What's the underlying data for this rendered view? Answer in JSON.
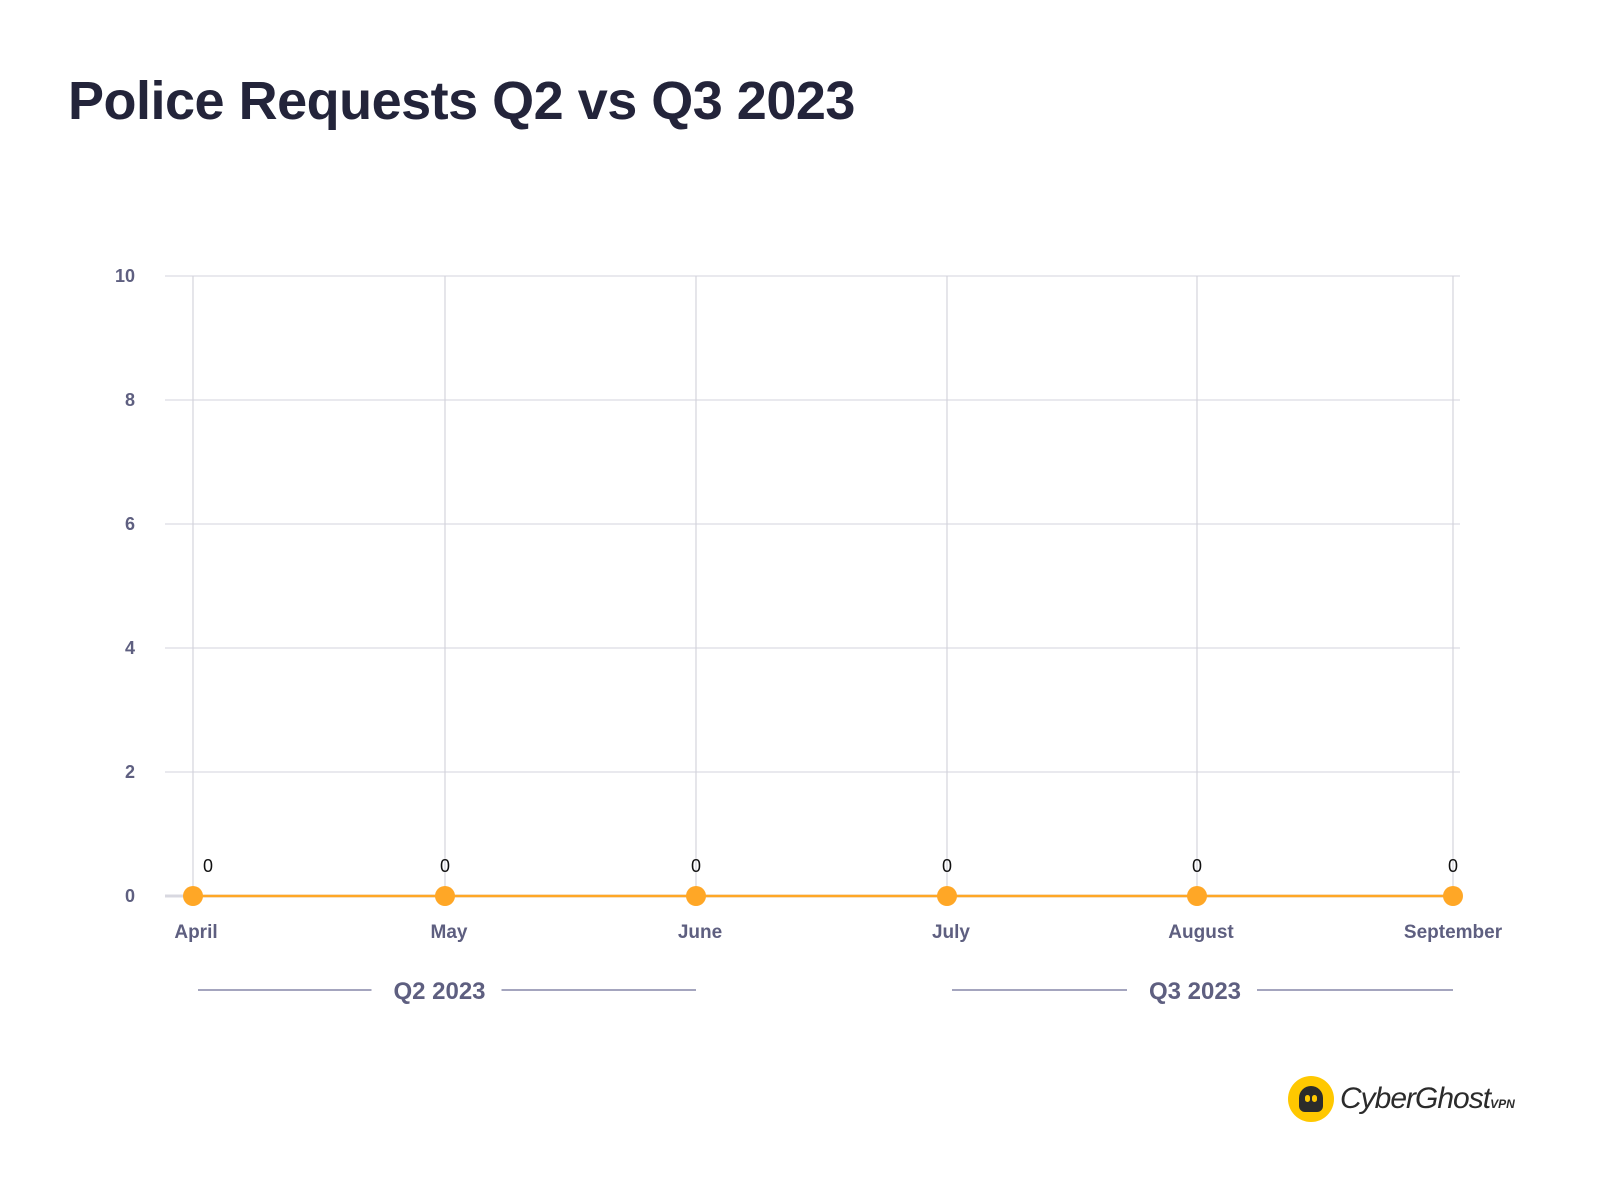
{
  "chart_data": {
    "type": "line",
    "title": "Police Requests Q2 vs Q3 2023",
    "xlabel": "",
    "ylabel": "",
    "categories": [
      "April",
      "May",
      "June",
      "July",
      "August",
      "September"
    ],
    "series": [
      {
        "name": "Police Requests",
        "values": [
          0,
          0,
          0,
          0,
          0,
          0
        ],
        "color": "#ffa726"
      }
    ],
    "ylim": [
      0,
      10
    ],
    "yticks": [
      0,
      2,
      4,
      6,
      8,
      10
    ],
    "grid": true,
    "groups": [
      {
        "label": "Q2 2023",
        "from": "April",
        "to": "June"
      },
      {
        "label": "Q3 2023",
        "from": "July",
        "to": "September"
      }
    ]
  },
  "brand": {
    "name": "CyberGhost",
    "suffix": "VPN"
  }
}
